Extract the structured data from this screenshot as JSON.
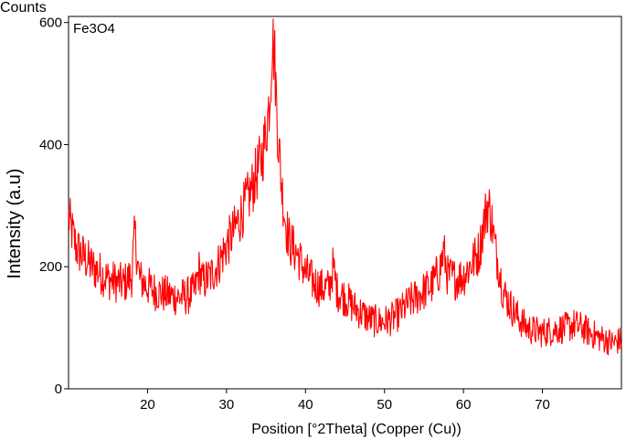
{
  "chart_data": {
    "type": "line",
    "label": "Fe3O4",
    "counts_label": "Counts",
    "xlabel": "Position [°2Theta] (Copper (Cu))",
    "ylabel": "Intensity (a.u)",
    "xlim": [
      10,
      80
    ],
    "ylim": [
      0,
      610
    ],
    "x_ticks": [
      20,
      30,
      40,
      50,
      60,
      70
    ],
    "y_ticks": [
      0,
      200,
      400,
      600
    ],
    "line_color": "#ff0000",
    "grid": false,
    "series": [
      {
        "x": [
          10,
          11,
          12,
          13,
          14,
          15,
          16,
          17,
          18,
          18.4,
          18.8,
          19,
          20,
          21,
          22,
          23,
          24,
          25,
          26,
          26.5,
          27,
          28,
          29,
          30,
          31,
          32,
          33,
          34,
          34.5,
          35,
          35.5,
          35.8,
          36.1,
          36.5,
          37,
          37.5,
          38,
          39,
          40,
          41,
          42,
          43,
          43.5,
          44,
          45,
          46,
          47,
          48,
          49,
          50,
          51,
          52,
          53,
          54,
          55,
          56,
          57,
          57.5,
          58,
          59,
          60,
          61,
          62,
          62.5,
          63,
          63.3,
          63.7,
          64,
          64.5,
          65,
          66,
          67,
          68,
          69,
          70,
          71,
          72,
          73,
          74,
          75,
          76,
          77,
          78,
          79,
          80
        ],
        "y": [
          280,
          230,
          215,
          200,
          190,
          180,
          175,
          172,
          185,
          255,
          200,
          180,
          168,
          160,
          155,
          152,
          150,
          152,
          160,
          195,
          175,
          185,
          205,
          235,
          260,
          290,
          320,
          360,
          380,
          420,
          480,
          575,
          540,
          420,
          330,
          270,
          240,
          220,
          190,
          175,
          165,
          165,
          200,
          160,
          150,
          135,
          125,
          115,
          110,
          110,
          115,
          125,
          140,
          150,
          160,
          170,
          195,
          225,
          185,
          180,
          185,
          205,
          225,
          265,
          300,
          295,
          265,
          230,
          200,
          160,
          135,
          115,
          100,
          95,
          92,
          95,
          98,
          100,
          105,
          100,
          92,
          85,
          80,
          75,
          80
        ]
      }
    ]
  }
}
